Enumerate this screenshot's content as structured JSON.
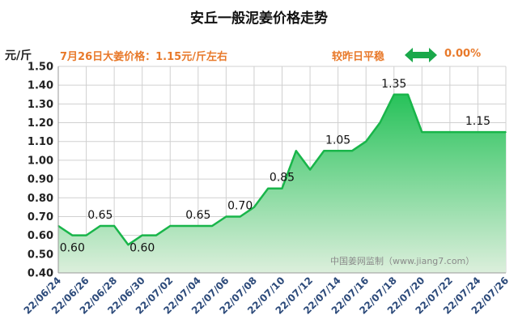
{
  "header": {
    "title": "安丘一般泥姜价格走势",
    "unit": "元/斤",
    "price_note": "7月26日大姜价格：1.15元/斤左右",
    "compare_label": "较昨日平稳",
    "compare_value": "0.00%",
    "watermark": "中国姜网监制（www.jiang7.com）"
  },
  "colors": {
    "line": "#19b54a",
    "fill_top": "#27c25a",
    "fill_bottom": "#dcefdc",
    "arrow": "#1aa84a",
    "accent_text": "#e8792a",
    "grid": "#d0d0d0"
  },
  "chart_data": {
    "type": "area",
    "title": "安丘一般泥姜价格走势",
    "ylabel": "元/斤",
    "ylim": [
      0.4,
      1.5
    ],
    "yticks": [
      "0.40",
      "0.50",
      "0.60",
      "0.70",
      "0.80",
      "0.90",
      "1.00",
      "1.10",
      "1.20",
      "1.30",
      "1.40",
      "1.50"
    ],
    "grid": true,
    "x_tick_labels": [
      "22/06/24",
      "22/06/26",
      "22/06/28",
      "22/06/30",
      "22/07/02",
      "22/07/04",
      "22/07/06",
      "22/07/08",
      "22/07/10",
      "22/07/12",
      "22/07/14",
      "22/07/16",
      "22/07/18",
      "22/07/20",
      "22/07/22",
      "22/07/24",
      "22/07/26"
    ],
    "x": [
      "22/06/24",
      "22/06/25",
      "22/06/26",
      "22/06/27",
      "22/06/28",
      "22/06/29",
      "22/06/30",
      "22/07/01",
      "22/07/02",
      "22/07/03",
      "22/07/04",
      "22/07/05",
      "22/07/06",
      "22/07/07",
      "22/07/08",
      "22/07/09",
      "22/07/10",
      "22/07/11",
      "22/07/12",
      "22/07/13",
      "22/07/14",
      "22/07/15",
      "22/07/16",
      "22/07/17",
      "22/07/18",
      "22/07/19",
      "22/07/20",
      "22/07/21",
      "22/07/22",
      "22/07/23",
      "22/07/24",
      "22/07/25",
      "22/07/26"
    ],
    "values": [
      0.65,
      0.6,
      0.6,
      0.65,
      0.65,
      0.55,
      0.6,
      0.6,
      0.65,
      0.65,
      0.65,
      0.65,
      0.7,
      0.7,
      0.75,
      0.85,
      0.85,
      1.05,
      0.95,
      1.05,
      1.05,
      1.05,
      1.1,
      1.2,
      1.35,
      1.35,
      1.15,
      1.15,
      1.15,
      1.15,
      1.15,
      1.15,
      1.15
    ],
    "data_labels": [
      {
        "x": "22/06/25",
        "text": "0.60"
      },
      {
        "x": "22/06/27",
        "text": "0.65"
      },
      {
        "x": "22/06/30",
        "text": "0.60"
      },
      {
        "x": "22/07/04",
        "text": "0.65"
      },
      {
        "x": "22/07/07",
        "text": "0.70"
      },
      {
        "x": "22/07/10",
        "text": "0.85"
      },
      {
        "x": "22/07/14",
        "text": "1.05"
      },
      {
        "x": "22/07/18",
        "text": "1.35"
      },
      {
        "x": "22/07/24",
        "text": "1.15"
      }
    ]
  }
}
